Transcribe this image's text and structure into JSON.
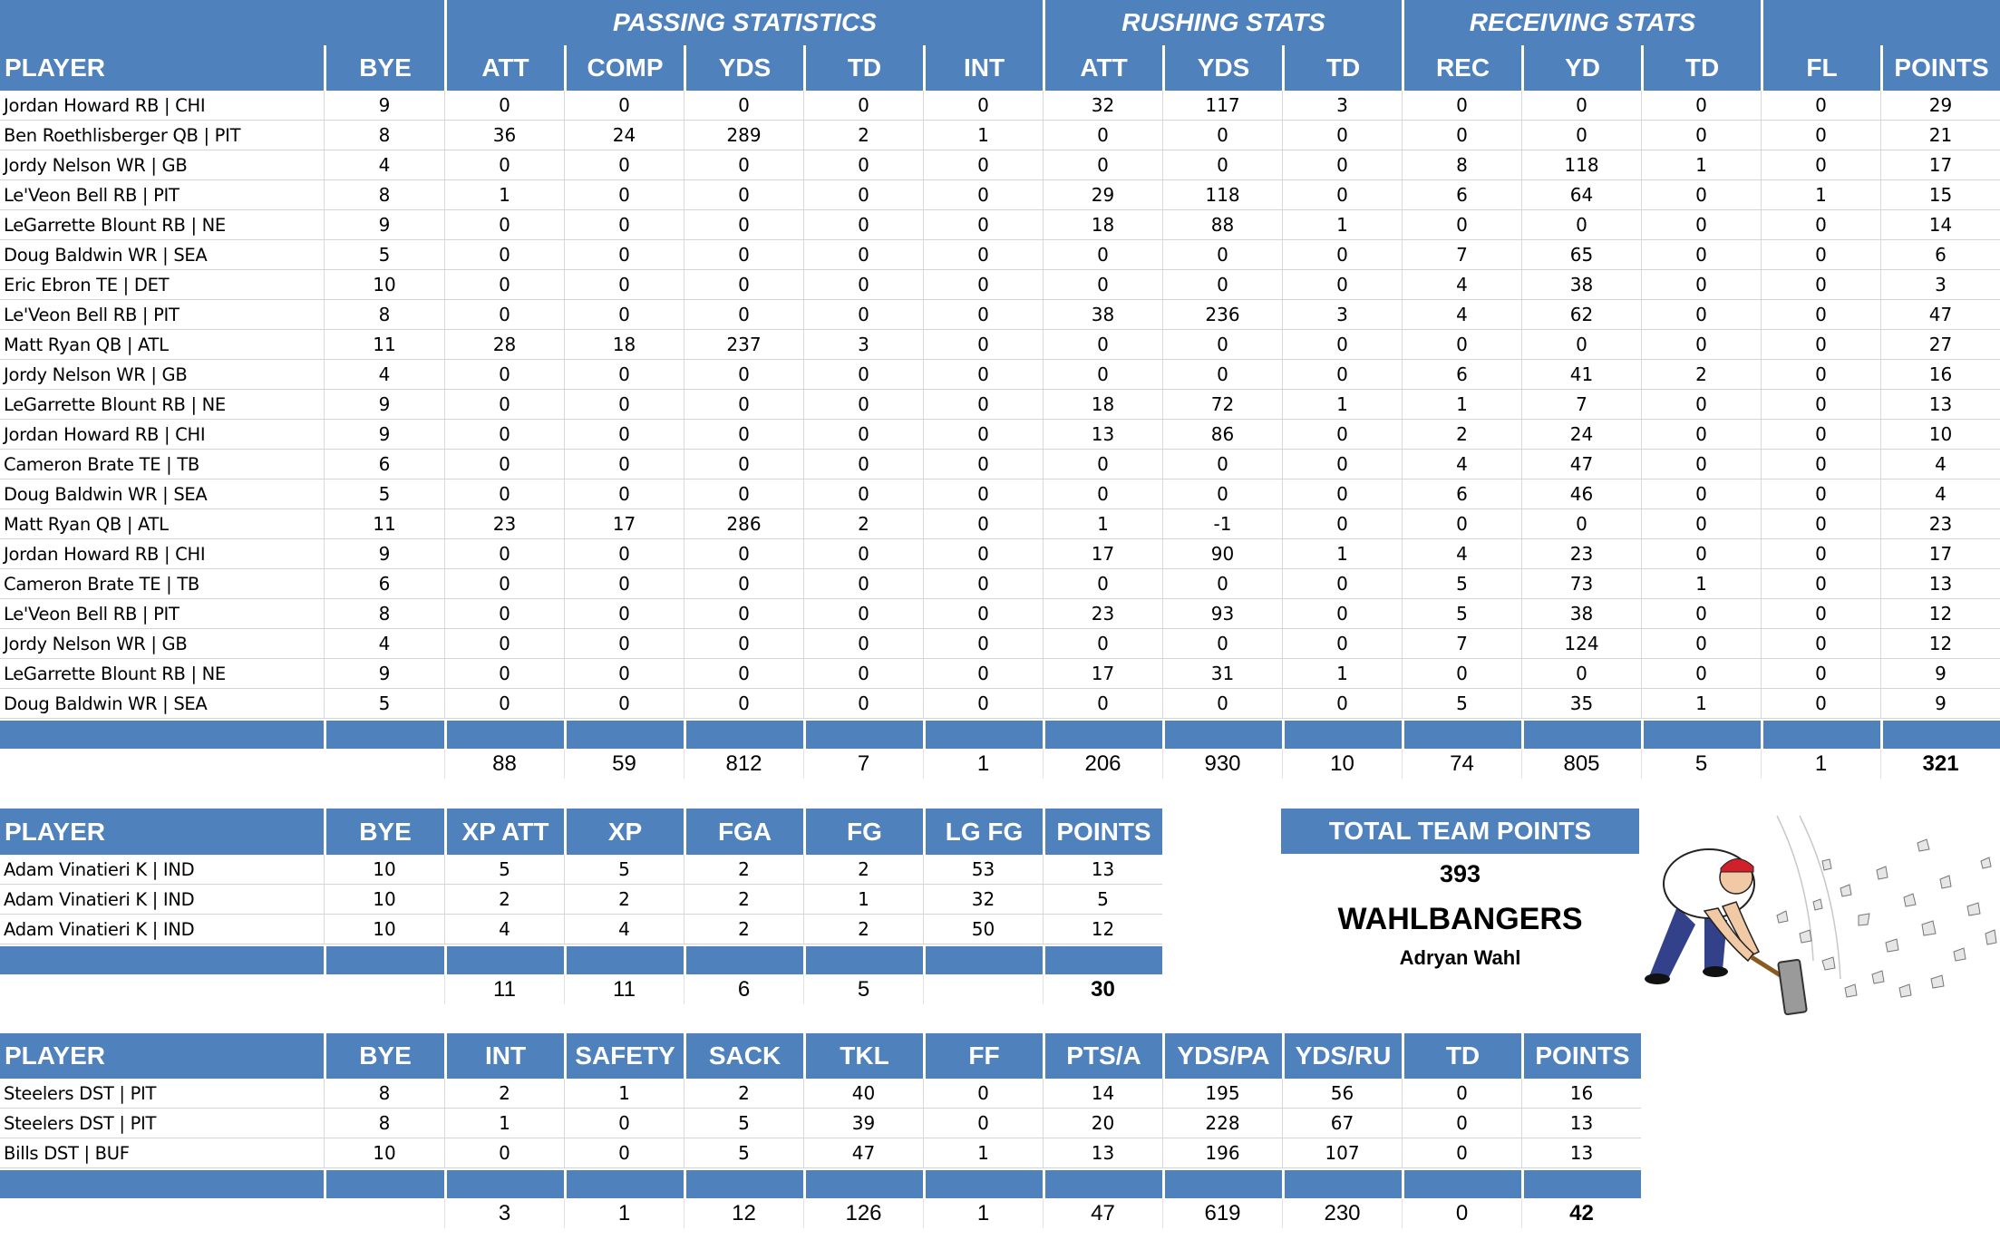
{
  "colors": {
    "header_bg": "#4f81bd",
    "header_text": "#ffffff",
    "grid_line": "#d9d9d9"
  },
  "offense": {
    "group_headers": {
      "passing": "PASSING STATISTICS",
      "rushing": "RUSHING STATS",
      "receiving": "RECEIVING STATS"
    },
    "columns": [
      "PLAYER",
      "BYE",
      "ATT",
      "COMP",
      "YDS",
      "TD",
      "INT",
      "ATT",
      "YDS",
      "TD",
      "REC",
      "YD",
      "TD",
      "FL",
      "POINTS"
    ],
    "rows": [
      [
        "Jordan Howard RB | CHI",
        "9",
        "0",
        "0",
        "0",
        "0",
        "0",
        "32",
        "117",
        "3",
        "0",
        "0",
        "0",
        "0",
        "29"
      ],
      [
        "Ben Roethlisberger QB | PIT",
        "8",
        "36",
        "24",
        "289",
        "2",
        "1",
        "0",
        "0",
        "0",
        "0",
        "0",
        "0",
        "0",
        "21"
      ],
      [
        "Jordy Nelson WR | GB",
        "4",
        "0",
        "0",
        "0",
        "0",
        "0",
        "0",
        "0",
        "0",
        "8",
        "118",
        "1",
        "0",
        "17"
      ],
      [
        "Le'Veon Bell RB | PIT",
        "8",
        "1",
        "0",
        "0",
        "0",
        "0",
        "29",
        "118",
        "0",
        "6",
        "64",
        "0",
        "1",
        "15"
      ],
      [
        "LeGarrette Blount RB | NE",
        "9",
        "0",
        "0",
        "0",
        "0",
        "0",
        "18",
        "88",
        "1",
        "0",
        "0",
        "0",
        "0",
        "14"
      ],
      [
        "Doug Baldwin WR | SEA",
        "5",
        "0",
        "0",
        "0",
        "0",
        "0",
        "0",
        "0",
        "0",
        "7",
        "65",
        "0",
        "0",
        "6"
      ],
      [
        "Eric Ebron TE | DET",
        "10",
        "0",
        "0",
        "0",
        "0",
        "0",
        "0",
        "0",
        "0",
        "4",
        "38",
        "0",
        "0",
        "3"
      ],
      [
        "Le'Veon Bell RB | PIT",
        "8",
        "0",
        "0",
        "0",
        "0",
        "0",
        "38",
        "236",
        "3",
        "4",
        "62",
        "0",
        "0",
        "47"
      ],
      [
        "Matt Ryan QB | ATL",
        "11",
        "28",
        "18",
        "237",
        "3",
        "0",
        "0",
        "0",
        "0",
        "0",
        "0",
        "0",
        "0",
        "27"
      ],
      [
        "Jordy Nelson WR | GB",
        "4",
        "0",
        "0",
        "0",
        "0",
        "0",
        "0",
        "0",
        "0",
        "6",
        "41",
        "2",
        "0",
        "16"
      ],
      [
        "LeGarrette Blount RB | NE",
        "9",
        "0",
        "0",
        "0",
        "0",
        "0",
        "18",
        "72",
        "1",
        "1",
        "7",
        "0",
        "0",
        "13"
      ],
      [
        "Jordan Howard RB | CHI",
        "9",
        "0",
        "0",
        "0",
        "0",
        "0",
        "13",
        "86",
        "0",
        "2",
        "24",
        "0",
        "0",
        "10"
      ],
      [
        "Cameron Brate TE | TB",
        "6",
        "0",
        "0",
        "0",
        "0",
        "0",
        "0",
        "0",
        "0",
        "4",
        "47",
        "0",
        "0",
        "4"
      ],
      [
        "Doug Baldwin WR | SEA",
        "5",
        "0",
        "0",
        "0",
        "0",
        "0",
        "0",
        "0",
        "0",
        "6",
        "46",
        "0",
        "0",
        "4"
      ],
      [
        "Matt Ryan QB | ATL",
        "11",
        "23",
        "17",
        "286",
        "2",
        "0",
        "1",
        "-1",
        "0",
        "0",
        "0",
        "0",
        "0",
        "23"
      ],
      [
        "Jordan Howard RB | CHI",
        "9",
        "0",
        "0",
        "0",
        "0",
        "0",
        "17",
        "90",
        "1",
        "4",
        "23",
        "0",
        "0",
        "17"
      ],
      [
        "Cameron Brate TE | TB",
        "6",
        "0",
        "0",
        "0",
        "0",
        "0",
        "0",
        "0",
        "0",
        "5",
        "73",
        "1",
        "0",
        "13"
      ],
      [
        "Le'Veon Bell RB | PIT",
        "8",
        "0",
        "0",
        "0",
        "0",
        "0",
        "23",
        "93",
        "0",
        "5",
        "38",
        "0",
        "0",
        "12"
      ],
      [
        "Jordy Nelson WR | GB",
        "4",
        "0",
        "0",
        "0",
        "0",
        "0",
        "0",
        "0",
        "0",
        "7",
        "124",
        "0",
        "0",
        "12"
      ],
      [
        "LeGarrette Blount RB | NE",
        "9",
        "0",
        "0",
        "0",
        "0",
        "0",
        "17",
        "31",
        "1",
        "0",
        "0",
        "0",
        "0",
        "9"
      ],
      [
        "Doug Baldwin WR | SEA",
        "5",
        "0",
        "0",
        "0",
        "0",
        "0",
        "0",
        "0",
        "0",
        "5",
        "35",
        "1",
        "0",
        "9"
      ]
    ],
    "totals": [
      "",
      "",
      "88",
      "59",
      "812",
      "7",
      "1",
      "206",
      "930",
      "10",
      "74",
      "805",
      "5",
      "1",
      "321"
    ]
  },
  "kicker": {
    "columns": [
      "PLAYER",
      "BYE",
      "XP ATT",
      "XP",
      "FGA",
      "FG",
      "LG FG",
      "POINTS"
    ],
    "rows": [
      [
        "Adam Vinatieri K | IND",
        "10",
        "5",
        "5",
        "2",
        "2",
        "53",
        "13"
      ],
      [
        "Adam Vinatieri K | IND",
        "10",
        "2",
        "2",
        "2",
        "1",
        "32",
        "5"
      ],
      [
        "Adam Vinatieri K | IND",
        "10",
        "4",
        "4",
        "2",
        "2",
        "50",
        "12"
      ]
    ],
    "totals": [
      "",
      "",
      "11",
      "11",
      "6",
      "5",
      "",
      "30"
    ]
  },
  "defense": {
    "columns": [
      "PLAYER",
      "BYE",
      "INT",
      "SAFETY",
      "SACK",
      "TKL",
      "FF",
      "PTS/A",
      "YDS/PA",
      "YDS/RU",
      "TD",
      "POINTS"
    ],
    "rows": [
      [
        "Steelers DST | PIT",
        "8",
        "2",
        "1",
        "2",
        "40",
        "0",
        "14",
        "195",
        "56",
        "0",
        "16"
      ],
      [
        "Steelers DST | PIT",
        "8",
        "1",
        "0",
        "5",
        "39",
        "0",
        "20",
        "228",
        "67",
        "0",
        "13"
      ],
      [
        "Bills DST | BUF",
        "10",
        "0",
        "0",
        "5",
        "47",
        "1",
        "13",
        "196",
        "107",
        "0",
        "13"
      ]
    ],
    "totals": [
      "",
      "",
      "3",
      "1",
      "12",
      "126",
      "1",
      "47",
      "619",
      "230",
      "0",
      "42"
    ]
  },
  "team": {
    "title": "TOTAL TEAM POINTS",
    "total_points": "393",
    "team_name": "WAHLBANGERS",
    "owner": "Adryan Wahl",
    "mascot_icon": "sledgehammer-cartoon-icon"
  }
}
